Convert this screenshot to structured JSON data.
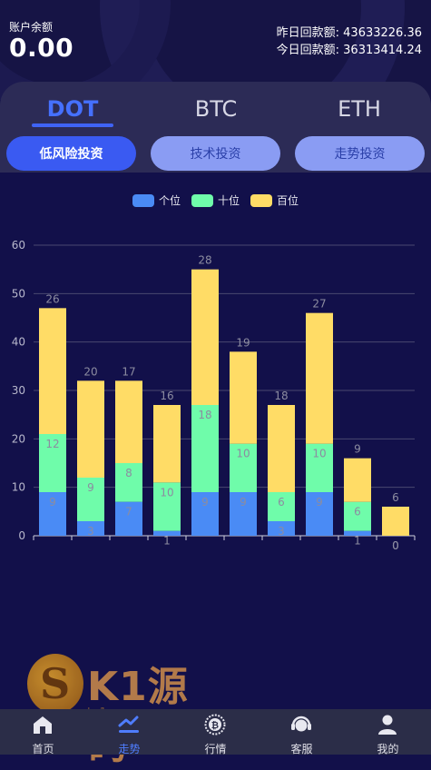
{
  "account": {
    "balance_label": "账户余额",
    "balance_value": "0.00",
    "yesterday_label": "昨日回款额:",
    "yesterday_value": "43633226.36",
    "today_label": "今日回款额:",
    "today_value": "36313414.24"
  },
  "coin_tabs": [
    {
      "label": "DOT",
      "active": true
    },
    {
      "label": "BTC",
      "active": false
    },
    {
      "label": "ETH",
      "active": false
    }
  ],
  "strategy_tabs": [
    {
      "label": "低风险投资",
      "active": true
    },
    {
      "label": "技术投资",
      "active": false
    },
    {
      "label": "走势投资",
      "active": false
    }
  ],
  "colors": {
    "series_ge": "#4a8bf5",
    "series_shi": "#6ffcaa",
    "series_bai": "#ffdc66",
    "accent": "#3a5af2"
  },
  "chart_data": {
    "type": "bar",
    "stacked": true,
    "categories": [
      "",
      "",
      "",
      "",
      "",
      "",
      "",
      "",
      "",
      ""
    ],
    "series": [
      {
        "name": "个位",
        "values": [
          9,
          3,
          7,
          1,
          9,
          9,
          3,
          9,
          1,
          0
        ]
      },
      {
        "name": "十位",
        "values": [
          12,
          9,
          8,
          10,
          18,
          10,
          6,
          10,
          6,
          0
        ]
      },
      {
        "name": "百位",
        "values": [
          26,
          20,
          17,
          16,
          28,
          19,
          18,
          27,
          9,
          6
        ]
      }
    ],
    "ylim": [
      0,
      60
    ],
    "yticks": [
      0,
      10,
      20,
      30,
      40,
      50,
      60
    ],
    "grid": true,
    "legend": "top-center"
  },
  "nav": [
    {
      "label": "首页",
      "icon": "home-icon",
      "active": false
    },
    {
      "label": "走势",
      "icon": "trend-icon",
      "active": true
    },
    {
      "label": "行情",
      "icon": "market-icon",
      "active": false
    },
    {
      "label": "客服",
      "icon": "support-icon",
      "active": false
    },
    {
      "label": "我的",
      "icon": "user-icon",
      "active": false
    }
  ]
}
